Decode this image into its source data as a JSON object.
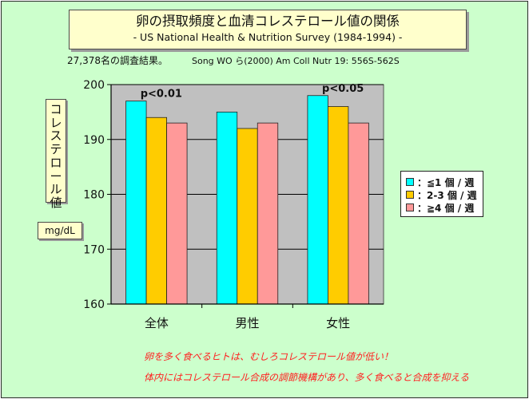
{
  "title": "卵の摂取頻度と血清コレステロール値の関係",
  "subtitle": "- US National Health & Nutrition Survey (1984-1994) -",
  "note_count": "27,378名の調査結果。",
  "note_citation": "Song WO ら(2000)  Am Coll Nutr 19: 556S-562S",
  "ylabel": "コレステロール値",
  "unit": "mg/dL",
  "messages": [
    "卵を多く食べるヒトは、むしろコレステロール値が低い！",
    "体内にはコレステロール合成の調節機構があり、多く食べると合成を抑える"
  ],
  "colors": {
    "plot_bg": "#c0c0c0",
    "slide_bg": "#ccffcc",
    "message": "#ff2020"
  },
  "chart_data": {
    "type": "bar",
    "categories": [
      "全体",
      "男性",
      "女性"
    ],
    "series": [
      {
        "name": "：≦1 個 / 週",
        "values": [
          197,
          195,
          198
        ],
        "color": "#00ffff"
      },
      {
        "name": "：2-3 個 / 週",
        "values": [
          194,
          192,
          196
        ],
        "color": "#ffcc00"
      },
      {
        "name": "：≧4 個 / 週",
        "values": [
          193,
          193,
          193
        ],
        "color": "#ff9999"
      }
    ],
    "annotations": [
      {
        "category": "全体",
        "text": "p<0.01"
      },
      {
        "category": "女性",
        "text": "p<0.05"
      }
    ],
    "ylim": [
      160,
      200
    ],
    "yticks": [
      160,
      170,
      180,
      190,
      200
    ],
    "grid": true,
    "legend": "right"
  }
}
